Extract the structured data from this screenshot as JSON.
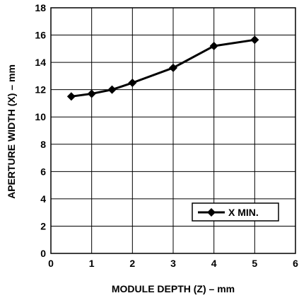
{
  "chart_data": {
    "type": "line",
    "xlabel": "MODULE DEPTH (Z) – mm",
    "ylabel": "APERTURE WIDTH (X) – mm",
    "xlim": [
      0,
      6
    ],
    "ylim": [
      0,
      18
    ],
    "x_ticks": [
      0,
      1,
      2,
      3,
      4,
      5,
      6
    ],
    "y_ticks": [
      0,
      2,
      4,
      6,
      8,
      10,
      12,
      14,
      16,
      18
    ],
    "grid": true,
    "legend_position": "bottom-right",
    "series": [
      {
        "name": "X MIN.",
        "color": "#000000",
        "marker": "diamond",
        "x": [
          0.5,
          1,
          1.5,
          2,
          3,
          4,
          5
        ],
        "y": [
          11.5,
          11.7,
          12.0,
          12.5,
          13.6,
          15.2,
          15.65
        ]
      }
    ]
  }
}
